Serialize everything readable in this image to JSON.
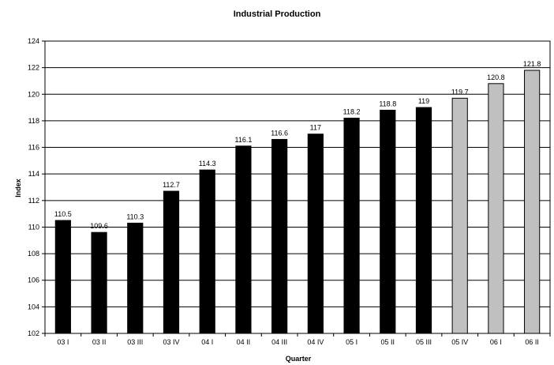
{
  "chart_data": {
    "type": "bar",
    "title": "Industrial Production",
    "xlabel": "Quarter",
    "ylabel": "Index",
    "ylim": [
      102,
      124
    ],
    "ytick_step": 2,
    "grid": true,
    "categories": [
      "03 I",
      "03 II",
      "03 III",
      "03 IV",
      "04 I",
      "04 II",
      "04 III",
      "04 IV",
      "05 I",
      "05 II",
      "05 III",
      "05 IV",
      "06 I",
      "06 II"
    ],
    "values": [
      110.5,
      109.6,
      110.3,
      112.7,
      114.3,
      116.1,
      116.6,
      117,
      118.2,
      118.8,
      119,
      119.7,
      120.8,
      121.8
    ],
    "bar_colors": [
      "#000000",
      "#000000",
      "#000000",
      "#000000",
      "#000000",
      "#000000",
      "#000000",
      "#000000",
      "#000000",
      "#000000",
      "#000000",
      "#c0c0c0",
      "#c0c0c0",
      "#c0c0c0"
    ]
  }
}
